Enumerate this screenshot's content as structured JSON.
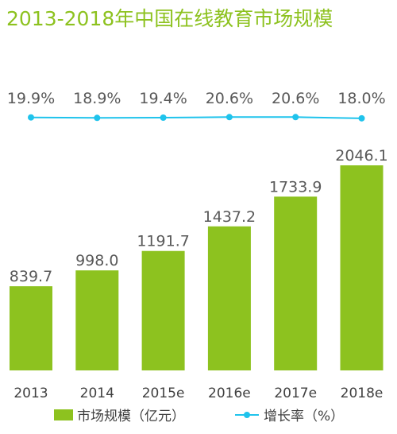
{
  "chart_data": {
    "type": "bar",
    "title": "2013-2018年中国在线教育市场规模",
    "categories": [
      "2013",
      "2014",
      "2015e",
      "2016e",
      "2017e",
      "2018e"
    ],
    "series": [
      {
        "name": "市场规模（亿元）",
        "type": "bar",
        "values": [
          839.7,
          998.0,
          1191.7,
          1437.2,
          1733.9,
          2046.1
        ],
        "labels": [
          "839.7",
          "998.0",
          "1191.7",
          "1437.2",
          "1733.9",
          "2046.1"
        ],
        "color": "#8dc21f"
      },
      {
        "name": "增长率（%）",
        "type": "line",
        "values": [
          19.9,
          18.9,
          19.4,
          20.6,
          20.6,
          18.0
        ],
        "labels": [
          "19.9%",
          "18.9%",
          "19.4%",
          "20.6%",
          "20.6%",
          "18.0%"
        ],
        "color": "#1fc3ec"
      }
    ],
    "bar_ylim": [
      0,
      2100
    ],
    "line_ylim": [
      16,
      24
    ],
    "grid": false,
    "legend_position": "bottom"
  }
}
